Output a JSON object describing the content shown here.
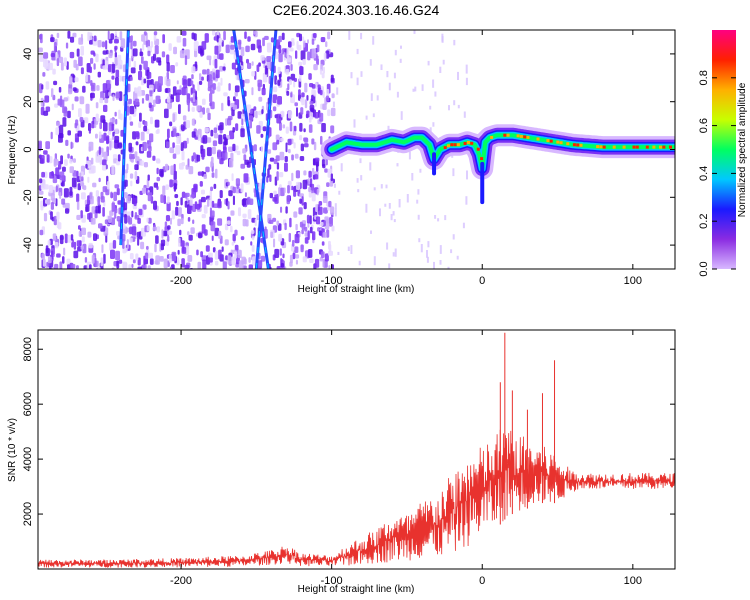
{
  "title": "C2E6.2024.303.16.46.G24",
  "colors": {
    "trace": "#e8322e",
    "noise": "#6a1cf0",
    "colorbar_stops": [
      "#d8b8ff",
      "#8a2be2",
      "#1a1aff",
      "#00c8ff",
      "#00ff60",
      "#c8ff00",
      "#ffb000",
      "#ff2000",
      "#ff0080"
    ]
  },
  "chart_data": [
    {
      "type": "heatmap",
      "title": "C2E6.2024.303.16.46.G24",
      "xlabel": "Height of straight line (km)",
      "ylabel": "Frequency (Hz)",
      "xlim": [
        -295,
        128
      ],
      "ylim": [
        -50,
        50
      ],
      "xticks": [
        -200,
        -100,
        0,
        100
      ],
      "yticks": [
        -40,
        -20,
        0,
        20,
        40
      ],
      "colorbar": {
        "label": "Normalized spectral amplitude",
        "range": [
          0,
          1
        ],
        "ticks": [
          "0.0",
          "0.2",
          "0.4",
          "0.6",
          "0.8"
        ]
      },
      "ridge": {
        "x": [
          -100,
          -90,
          -80,
          -70,
          -60,
          -52,
          -45,
          -40,
          -35,
          -32,
          -28,
          -22,
          -15,
          -10,
          -5,
          -2,
          0,
          2,
          5,
          10,
          20,
          30,
          40,
          50,
          60,
          80,
          100,
          128
        ],
        "freq": [
          0,
          3,
          2,
          2,
          4,
          3,
          5,
          5,
          2,
          -4,
          0,
          2,
          2,
          3,
          2,
          -2,
          -8,
          3,
          5,
          6,
          6,
          5,
          4,
          3,
          2,
          1,
          1,
          1
        ]
      },
      "noise_region_x": [
        -295,
        -100
      ],
      "streaks": [
        {
          "x_start": -142,
          "x_end": -165,
          "freq_start": -50,
          "freq_end": 50
        },
        {
          "x_start": -150,
          "x_end": -137,
          "freq_start": -50,
          "freq_end": 50
        },
        {
          "x_start": -240,
          "x_end": -235,
          "freq_start": -40,
          "freq_end": 50
        }
      ]
    },
    {
      "type": "line",
      "title": "",
      "xlabel": "Height of straight line (km)",
      "ylabel": "SNR (10 * v/v)",
      "xlim": [
        -295,
        128
      ],
      "ylim": [
        0,
        8700
      ],
      "xticks": [
        -200,
        -100,
        0,
        100
      ],
      "yticks": [
        2000,
        4000,
        6000,
        8000
      ],
      "envelope": {
        "x": [
          -295,
          -250,
          -200,
          -160,
          -140,
          -130,
          -120,
          -100,
          -90,
          -80,
          -70,
          -60,
          -50,
          -40,
          -30,
          -20,
          -10,
          0,
          10,
          15,
          20,
          30,
          40,
          50,
          55,
          60,
          70,
          80,
          100,
          128
        ],
        "low": [
          50,
          50,
          60,
          80,
          150,
          200,
          100,
          80,
          100,
          150,
          200,
          250,
          300,
          350,
          400,
          500,
          800,
          1200,
          1500,
          1800,
          2000,
          2200,
          2400,
          2400,
          2600,
          2800,
          2900,
          2900,
          2900,
          2900
        ],
        "high": [
          350,
          350,
          400,
          500,
          700,
          900,
          600,
          500,
          900,
          1200,
          1500,
          2000,
          2000,
          2500,
          2800,
          3500,
          4200,
          4500,
          5000,
          5500,
          5000,
          4800,
          4500,
          4200,
          3800,
          3600,
          3500,
          3500,
          3500,
          3500
        ]
      },
      "peaks": [
        {
          "x": 12,
          "y": 6800
        },
        {
          "x": 15,
          "y": 8600
        },
        {
          "x": 20,
          "y": 6500
        },
        {
          "x": 30,
          "y": 5800
        },
        {
          "x": 40,
          "y": 6400
        },
        {
          "x": 48,
          "y": 7600
        }
      ]
    }
  ]
}
